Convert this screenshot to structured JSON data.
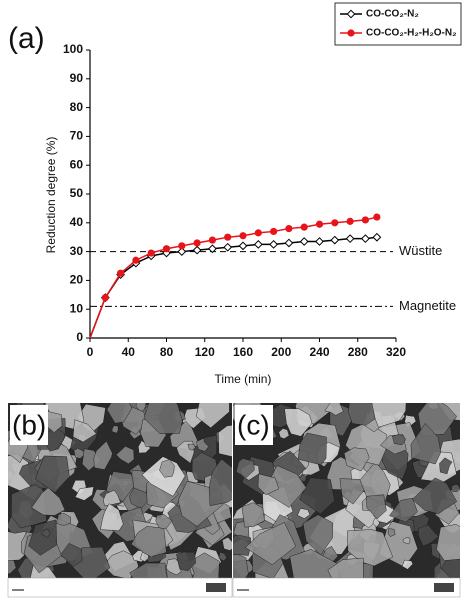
{
  "chart_data": {
    "type": "line",
    "panel": "(a)",
    "x_label": "Time (min)",
    "y_label": "Reduction degree (%)",
    "x": [
      0,
      16,
      32,
      48,
      64,
      80,
      96,
      112,
      128,
      144,
      160,
      176,
      192,
      208,
      224,
      240,
      256,
      272,
      288,
      300
    ],
    "series": [
      {
        "name": "CO-CO₂-N₂",
        "color": "#000000",
        "marker": "diamond",
        "values": [
          0,
          14,
          22,
          26,
          28.5,
          29.5,
          30,
          30.5,
          31,
          31.5,
          32,
          32.5,
          32.5,
          33,
          33.5,
          33.5,
          34,
          34.5,
          34.5,
          35
        ]
      },
      {
        "name": "CO-CO₂-H₂-H₂O-N₂",
        "color": "#e8141b",
        "marker": "circle",
        "values": [
          0,
          14,
          22.5,
          27,
          29.5,
          31,
          32,
          33,
          34,
          35,
          35.5,
          36.5,
          37,
          38,
          38.5,
          39.5,
          40,
          40.5,
          41,
          42
        ]
      }
    ],
    "reference_lines": [
      {
        "value": 30,
        "label": "Wüstite",
        "style": "dashed"
      },
      {
        "value": 11,
        "label": "Magnetite",
        "style": "dashdot"
      }
    ],
    "xlim": [
      0,
      320
    ],
    "ylim": [
      0,
      100
    ],
    "xticks": [
      0,
      40,
      80,
      120,
      160,
      200,
      240,
      280,
      320
    ],
    "yticks": [
      0,
      10,
      20,
      30,
      40,
      50,
      60,
      70,
      80,
      90,
      100
    ],
    "grid": false,
    "legend": "top-right"
  },
  "images": [
    {
      "label": "(b)"
    },
    {
      "label": "(c)"
    }
  ]
}
